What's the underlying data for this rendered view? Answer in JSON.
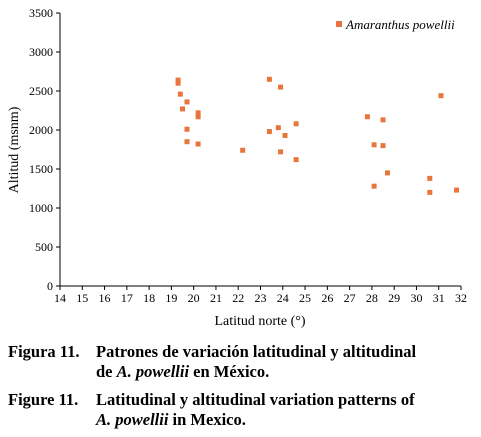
{
  "chart_data": {
    "type": "scatter",
    "xlabel": "Latitud norte (°)",
    "ylabel": "Altitud (msnm)",
    "xlim": [
      14,
      32
    ],
    "ylim": [
      0,
      3500
    ],
    "xticks": [
      14,
      15,
      16,
      17,
      18,
      19,
      20,
      21,
      22,
      23,
      24,
      25,
      26,
      27,
      28,
      29,
      30,
      31,
      32
    ],
    "yticks": [
      0,
      500,
      1000,
      1500,
      2000,
      2500,
      3000,
      3500
    ],
    "grid": false,
    "legend_position": "top-right",
    "series": [
      {
        "name": "Amaranthus powellii",
        "color": "#E8763A",
        "marker": "square",
        "points": [
          {
            "x": 19.3,
            "y": 2640
          },
          {
            "x": 19.3,
            "y": 2600
          },
          {
            "x": 19.4,
            "y": 2460
          },
          {
            "x": 19.7,
            "y": 2360
          },
          {
            "x": 19.5,
            "y": 2270
          },
          {
            "x": 20.2,
            "y": 2220
          },
          {
            "x": 20.2,
            "y": 2170
          },
          {
            "x": 19.7,
            "y": 2010
          },
          {
            "x": 19.7,
            "y": 1850
          },
          {
            "x": 20.2,
            "y": 1820
          },
          {
            "x": 22.2,
            "y": 1740
          },
          {
            "x": 23.4,
            "y": 2650
          },
          {
            "x": 23.9,
            "y": 2550
          },
          {
            "x": 23.8,
            "y": 2030
          },
          {
            "x": 23.4,
            "y": 1980
          },
          {
            "x": 24.1,
            "y": 1930
          },
          {
            "x": 24.6,
            "y": 2080
          },
          {
            "x": 23.9,
            "y": 1720
          },
          {
            "x": 24.6,
            "y": 1620
          },
          {
            "x": 27.8,
            "y": 2170
          },
          {
            "x": 28.5,
            "y": 2130
          },
          {
            "x": 28.1,
            "y": 1810
          },
          {
            "x": 28.5,
            "y": 1800
          },
          {
            "x": 28.7,
            "y": 1450
          },
          {
            "x": 28.1,
            "y": 1280
          },
          {
            "x": 30.6,
            "y": 1380
          },
          {
            "x": 30.6,
            "y": 1200
          },
          {
            "x": 31.1,
            "y": 2440
          },
          {
            "x": 31.8,
            "y": 1230
          }
        ]
      }
    ]
  },
  "caption": {
    "es": {
      "label": "Figura 11.",
      "line1": "Patrones de variación latitudinal y altitudinal",
      "line2_prefix": "de ",
      "line2_species": "A. powellii",
      "line2_suffix": " en México."
    },
    "en": {
      "label": "Figure 11.",
      "line1": "Latitudinal y altitudinal variation patterns of",
      "line2_species": "A. powellii",
      "line2_suffix": " in Mexico."
    }
  }
}
